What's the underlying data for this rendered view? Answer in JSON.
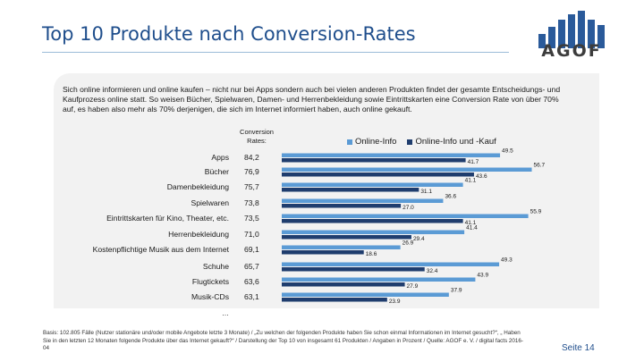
{
  "header": {
    "title": "Top 10 Produkte nach Conversion-Rates",
    "logo_text": "AGOF"
  },
  "intro_text": "Sich online informieren und online kaufen – nicht nur bei Apps sondern auch bei vielen anderen Produkten findet der gesamte Entscheidungs- und Kaufprozess online statt. So weisen Bücher, Spielwaren, Damen- und Herrenbekleidung sowie Eintrittskarten eine Conversion Rate von über 70% auf, es haben also mehr als 70% derjenigen, die sich im Internet informiert haben, auch online gekauft.",
  "rate_header": "Conversion Rates:",
  "ellipsis": "…",
  "footnote": "Basis: 102.805 Fälle (Nutzer stationäre und/oder mobile Angebote letzte 3 Monate) / „Zu welchen der folgenden Produkte haben Sie schon einmal Informationen im Internet gesucht?“, „ Haben Sie in den letzten 12 Monaten folgende Produkte über das Internet gekauft?“ / Darstellung der Top 10 von insgesamt 61 Produkten / Angaben in Prozent / Quelle: AGOF e. V. / digital facts 2016-04",
  "page_number": "Seite 14",
  "colors": {
    "title": "#1f4e8c",
    "series_info": "#5b9bd5",
    "series_buy": "#1f3d6e",
    "panel": "#f2f2f2"
  },
  "chart_data": {
    "type": "bar",
    "orientation": "horizontal",
    "title": "Top 10 Produkte nach Conversion-Rates",
    "categories": [
      "Apps",
      "Bücher",
      "Damenbekleidung",
      "Spielwaren",
      "Eintrittskarten für Kino, Theater, etc.",
      "Herrenbekleidung",
      "Kostenpflichtige Musik aus dem Internet",
      "Schuhe",
      "Flugtickets",
      "Musik-CDs"
    ],
    "conversion_rates": [
      "84,2",
      "76,9",
      "75,7",
      "73,8",
      "73,5",
      "71,0",
      "69,1",
      "65,7",
      "63,6",
      "63,1"
    ],
    "series": [
      {
        "name": "Online-Info",
        "values": [
          49.5,
          56.7,
          41.1,
          36.6,
          55.9,
          41.4,
          26.9,
          49.3,
          43.9,
          37.9
        ]
      },
      {
        "name": "Online-Info und -Kauf",
        "values": [
          41.7,
          43.6,
          31.1,
          27.0,
          41.1,
          29.4,
          18.6,
          32.4,
          27.9,
          23.9
        ]
      }
    ],
    "value_labels": {
      "Online-Info": [
        "49.5",
        "56.7",
        "41.1",
        "36.6",
        "55.9",
        "41.4",
        "26.9",
        "49.3",
        "43.9",
        "37.9"
      ],
      "Online-Info und -Kauf": [
        "41.7",
        "43.6",
        "31.1",
        "27.0",
        "41.1",
        "29.4",
        "18.6",
        "32.4",
        "27.9",
        "23.9"
      ]
    },
    "legend": "top",
    "unit": "%"
  }
}
